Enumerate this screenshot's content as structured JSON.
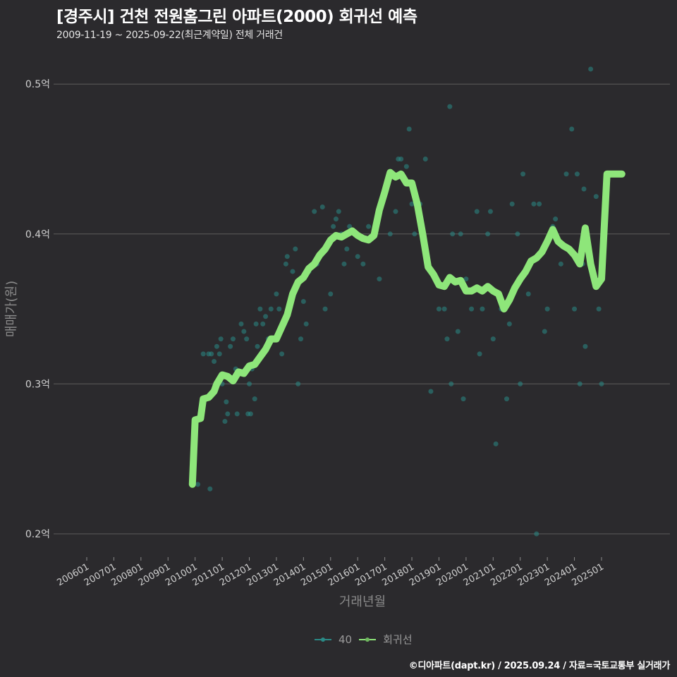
{
  "header": {
    "title": "[경주시] 건천 전원홈그린 아파트(2000) 회귀선 예측",
    "subtitle": "2009-11-19 ~ 2025-09-22(최근계약일) 전체 거래건"
  },
  "legend": {
    "items": [
      {
        "label": "40",
        "color": "#2a8a86"
      },
      {
        "label": "회귀선",
        "color": "#8ee67a"
      }
    ]
  },
  "footer": {
    "credit": "©디아파트(dapt.kr) / 2025.09.24 / 자료=국토교통부 실거래가"
  },
  "colors": {
    "background": "#2b2a2d",
    "grid": "#5c5c5c",
    "scatter": "#2a8a86",
    "regression": "#8ee67a"
  },
  "chart_data": {
    "type": "line",
    "title": "[경주시] 건천 전원홈그린 아파트(2000) 회귀선 예측",
    "subtitle": "2009-11-19 ~ 2025-09-22(최근계약일) 전체 거래건",
    "xlabel": "거래년월",
    "ylabel": "매매가(원)",
    "ylim": [
      0.185,
      0.53
    ],
    "y_ticks": [
      0.2,
      0.3,
      0.4,
      0.5
    ],
    "y_tick_labels": [
      "0.2억",
      "0.3억",
      "0.4억",
      "0.5억"
    ],
    "x_tick_labels": [
      "200601",
      "200701",
      "200801",
      "200901",
      "201001",
      "201101",
      "201201",
      "201301",
      "201401",
      "201501",
      "201601",
      "201701",
      "201801",
      "201901",
      "202001",
      "202101",
      "202201",
      "202301",
      "202401",
      "202501"
    ],
    "grid": true,
    "legend_position": "bottom",
    "series": [
      {
        "name": "회귀선",
        "type": "line",
        "x": [
          2009.9,
          2010.0,
          2010.2,
          2010.3,
          2010.5,
          2010.7,
          2010.8,
          2011.0,
          2011.2,
          2011.4,
          2011.6,
          2011.8,
          2012.0,
          2012.2,
          2012.4,
          2012.6,
          2012.8,
          2013.0,
          2013.2,
          2013.4,
          2013.6,
          2013.8,
          2014.0,
          2014.2,
          2014.4,
          2014.6,
          2014.8,
          2015.0,
          2015.2,
          2015.4,
          2015.6,
          2015.8,
          2016.0,
          2016.2,
          2016.4,
          2016.6,
          2016.8,
          2017.0,
          2017.2,
          2017.4,
          2017.6,
          2017.8,
          2018.0,
          2018.2,
          2018.4,
          2018.6,
          2018.8,
          2019.0,
          2019.2,
          2019.4,
          2019.6,
          2019.8,
          2020.0,
          2020.2,
          2020.4,
          2020.6,
          2020.8,
          2021.0,
          2021.2,
          2021.4,
          2021.6,
          2021.8,
          2022.0,
          2022.2,
          2022.4,
          2022.6,
          2022.8,
          2023.0,
          2023.2,
          2023.4,
          2023.6,
          2023.8,
          2024.0,
          2024.2,
          2024.4,
          2024.6,
          2024.8,
          2025.0,
          2025.2,
          2025.4,
          2025.55,
          2025.65,
          2025.75
        ],
        "values": [
          0.233,
          0.276,
          0.277,
          0.29,
          0.291,
          0.295,
          0.3,
          0.306,
          0.305,
          0.302,
          0.308,
          0.307,
          0.312,
          0.313,
          0.318,
          0.323,
          0.33,
          0.33,
          0.338,
          0.346,
          0.36,
          0.368,
          0.371,
          0.377,
          0.38,
          0.386,
          0.39,
          0.396,
          0.399,
          0.398,
          0.4,
          0.402,
          0.399,
          0.397,
          0.396,
          0.399,
          0.416,
          0.428,
          0.441,
          0.438,
          0.44,
          0.434,
          0.434,
          0.42,
          0.4,
          0.378,
          0.373,
          0.366,
          0.365,
          0.371,
          0.368,
          0.369,
          0.362,
          0.362,
          0.364,
          0.362,
          0.365,
          0.362,
          0.36,
          0.35,
          0.356,
          0.364,
          0.37,
          0.375,
          0.382,
          0.384,
          0.388,
          0.395,
          0.403,
          0.395,
          0.392,
          0.39,
          0.386,
          0.38,
          0.404,
          0.38,
          0.365,
          0.37,
          0.44,
          0.44,
          0.44,
          0.44,
          0.44
        ]
      },
      {
        "name": "40",
        "type": "scatter",
        "points": [
          [
            2010.1,
            0.233
          ],
          [
            2010.3,
            0.32
          ],
          [
            2010.5,
            0.32
          ],
          [
            2010.55,
            0.23
          ],
          [
            2010.6,
            0.32
          ],
          [
            2010.7,
            0.315
          ],
          [
            2010.8,
            0.325
          ],
          [
            2010.9,
            0.32
          ],
          [
            2010.95,
            0.33
          ],
          [
            2011.0,
            0.3
          ],
          [
            2011.1,
            0.275
          ],
          [
            2011.15,
            0.288
          ],
          [
            2011.2,
            0.28
          ],
          [
            2011.3,
            0.325
          ],
          [
            2011.4,
            0.33
          ],
          [
            2011.5,
            0.31
          ],
          [
            2011.55,
            0.28
          ],
          [
            2011.7,
            0.34
          ],
          [
            2011.8,
            0.335
          ],
          [
            2011.9,
            0.33
          ],
          [
            2011.95,
            0.28
          ],
          [
            2012.0,
            0.3
          ],
          [
            2012.05,
            0.28
          ],
          [
            2012.1,
            0.31
          ],
          [
            2012.2,
            0.29
          ],
          [
            2012.25,
            0.34
          ],
          [
            2012.3,
            0.325
          ],
          [
            2012.4,
            0.35
          ],
          [
            2012.5,
            0.34
          ],
          [
            2012.6,
            0.345
          ],
          [
            2012.7,
            0.33
          ],
          [
            2012.8,
            0.35
          ],
          [
            2013.0,
            0.36
          ],
          [
            2013.1,
            0.35
          ],
          [
            2013.2,
            0.32
          ],
          [
            2013.3,
            0.34
          ],
          [
            2013.35,
            0.38
          ],
          [
            2013.4,
            0.385
          ],
          [
            2013.5,
            0.355
          ],
          [
            2013.6,
            0.375
          ],
          [
            2013.7,
            0.39
          ],
          [
            2013.8,
            0.3
          ],
          [
            2013.9,
            0.33
          ],
          [
            2014.0,
            0.355
          ],
          [
            2014.1,
            0.34
          ],
          [
            2014.2,
            0.375
          ],
          [
            2014.4,
            0.415
          ],
          [
            2014.5,
            0.38
          ],
          [
            2014.7,
            0.418
          ],
          [
            2014.8,
            0.35
          ],
          [
            2015.0,
            0.36
          ],
          [
            2015.1,
            0.405
          ],
          [
            2015.2,
            0.41
          ],
          [
            2015.3,
            0.415
          ],
          [
            2015.4,
            0.4
          ],
          [
            2015.5,
            0.38
          ],
          [
            2015.6,
            0.39
          ],
          [
            2015.7,
            0.405
          ],
          [
            2016.0,
            0.385
          ],
          [
            2016.2,
            0.38
          ],
          [
            2016.4,
            0.405
          ],
          [
            2016.6,
            0.4
          ],
          [
            2016.8,
            0.37
          ],
          [
            2017.2,
            0.4
          ],
          [
            2017.4,
            0.415
          ],
          [
            2017.5,
            0.45
          ],
          [
            2017.6,
            0.45
          ],
          [
            2017.8,
            0.445
          ],
          [
            2017.9,
            0.47
          ],
          [
            2018.0,
            0.42
          ],
          [
            2018.1,
            0.4
          ],
          [
            2018.3,
            0.42
          ],
          [
            2018.5,
            0.45
          ],
          [
            2018.7,
            0.295
          ],
          [
            2019.0,
            0.35
          ],
          [
            2019.2,
            0.35
          ],
          [
            2019.3,
            0.33
          ],
          [
            2019.4,
            0.485
          ],
          [
            2019.45,
            0.3
          ],
          [
            2019.5,
            0.4
          ],
          [
            2019.7,
            0.335
          ],
          [
            2019.8,
            0.4
          ],
          [
            2019.9,
            0.29
          ],
          [
            2020.0,
            0.37
          ],
          [
            2020.2,
            0.35
          ],
          [
            2020.4,
            0.415
          ],
          [
            2020.5,
            0.32
          ],
          [
            2020.6,
            0.35
          ],
          [
            2020.8,
            0.4
          ],
          [
            2020.9,
            0.415
          ],
          [
            2021.0,
            0.33
          ],
          [
            2021.1,
            0.26
          ],
          [
            2021.3,
            0.35
          ],
          [
            2021.5,
            0.29
          ],
          [
            2021.6,
            0.34
          ],
          [
            2021.7,
            0.42
          ],
          [
            2021.9,
            0.4
          ],
          [
            2022.0,
            0.3
          ],
          [
            2022.1,
            0.44
          ],
          [
            2022.3,
            0.36
          ],
          [
            2022.5,
            0.42
          ],
          [
            2022.6,
            0.2
          ],
          [
            2022.7,
            0.42
          ],
          [
            2022.9,
            0.335
          ],
          [
            2023.0,
            0.35
          ],
          [
            2023.1,
            0.4
          ],
          [
            2023.2,
            0.405
          ],
          [
            2023.3,
            0.41
          ],
          [
            2023.5,
            0.38
          ],
          [
            2023.7,
            0.44
          ],
          [
            2023.9,
            0.47
          ],
          [
            2024.0,
            0.35
          ],
          [
            2024.1,
            0.44
          ],
          [
            2024.2,
            0.3
          ],
          [
            2024.3,
            0.38
          ],
          [
            2024.35,
            0.43
          ],
          [
            2024.4,
            0.325
          ],
          [
            2024.6,
            0.51
          ],
          [
            2024.8,
            0.425
          ],
          [
            2024.9,
            0.35
          ],
          [
            2025.0,
            0.3
          ],
          [
            2025.7,
            0.44
          ]
        ]
      }
    ]
  }
}
